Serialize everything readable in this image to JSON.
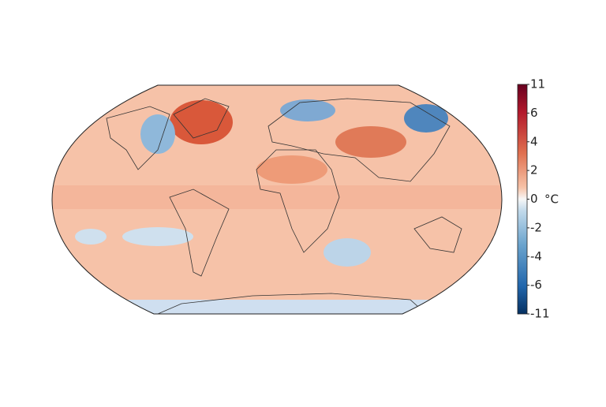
{
  "colorbar": {
    "unit": "°C",
    "ticks": [
      11,
      6,
      4,
      2,
      0,
      -2,
      -4,
      -6,
      -11
    ]
  }
}
